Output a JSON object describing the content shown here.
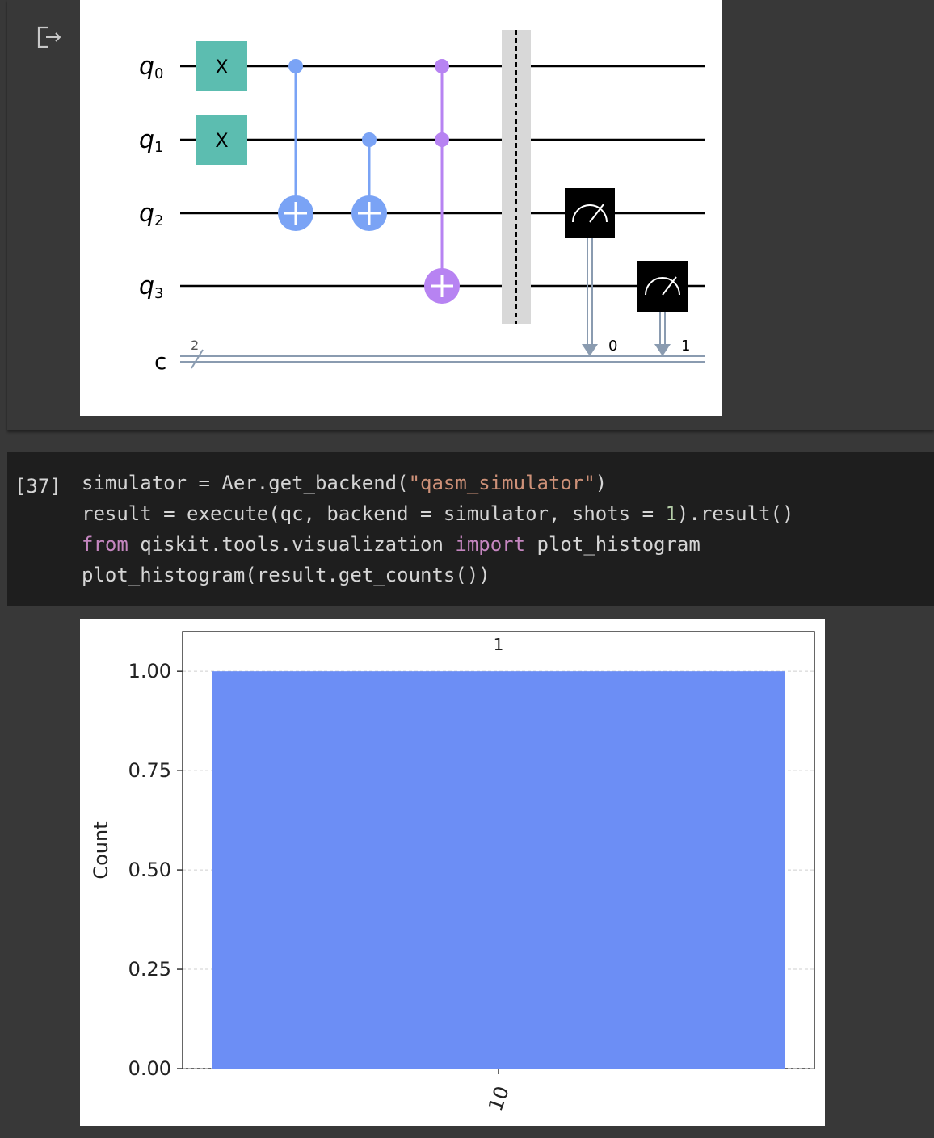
{
  "output_icon": "output-redirect-icon",
  "circuit": {
    "qubit_labels": [
      {
        "base": "q",
        "sub": "0"
      },
      {
        "base": "q",
        "sub": "1"
      },
      {
        "base": "q",
        "sub": "2"
      },
      {
        "base": "q",
        "sub": "3"
      }
    ],
    "classical_label": "c",
    "classical_width": "2",
    "x_gate_label": "X",
    "clbit_indices": [
      "0",
      "1"
    ],
    "colors": {
      "x_gate": "#5cbdb0",
      "cx": "#7aa3f5",
      "ccx": "#b783f2",
      "barrier": "#d8d8d8",
      "measure": "#000000",
      "classical_wire": "#8a9bb0"
    }
  },
  "code_cell": {
    "execution_count": "[37]",
    "lines": [
      [
        {
          "t": "simulator = Aer.get_backend(",
          "c": "plain"
        },
        {
          "t": "\"qasm_simulator\"",
          "c": "str"
        },
        {
          "t": ")",
          "c": "plain"
        }
      ],
      [
        {
          "t": "result = execute(qc, backend = simulator, shots = ",
          "c": "plain"
        },
        {
          "t": "1",
          "c": "num"
        },
        {
          "t": ").result()",
          "c": "plain"
        }
      ],
      [
        {
          "t": "from",
          "c": "kw"
        },
        {
          "t": " qiskit.tools.visualization ",
          "c": "plain"
        },
        {
          "t": "import",
          "c": "kw"
        },
        {
          "t": " plot_histogram",
          "c": "plain"
        }
      ],
      [
        {
          "t": "plot_histogram(result.get_counts())",
          "c": "plain"
        }
      ]
    ]
  },
  "chart_data": {
    "type": "bar",
    "categories": [
      "10"
    ],
    "values": [
      1.0
    ],
    "data_labels": [
      "1"
    ],
    "ylabel": "Count",
    "xlabel": "",
    "yticks": [
      "0.00",
      "0.25",
      "0.50",
      "0.75",
      "1.00"
    ],
    "ylim": [
      0,
      1.1
    ],
    "grid": true,
    "bar_color": "#6c8ef5"
  }
}
